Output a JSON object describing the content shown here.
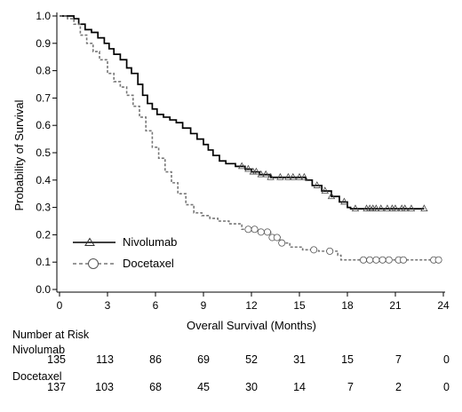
{
  "chart_data": {
    "type": "line",
    "title": "",
    "xlabel": "Overall Survival (Months)",
    "ylabel": "Probability of Survival",
    "xlim": [
      0,
      24
    ],
    "ylim": [
      0,
      1.0
    ],
    "x_ticks": [
      "0",
      "3",
      "6",
      "9",
      "12",
      "15",
      "18",
      "21",
      "24"
    ],
    "y_ticks": [
      "0.0",
      "0.1",
      "0.2",
      "0.3",
      "0.4",
      "0.5",
      "0.6",
      "0.7",
      "0.8",
      "0.9",
      "1.0"
    ],
    "grid": false,
    "legend_position": "lower-left",
    "series": [
      {
        "name": "Nivolumab",
        "color": "#000000",
        "style": "solid",
        "marker": "triangle",
        "steps": [
          [
            0,
            1.0
          ],
          [
            0.9,
            0.99
          ],
          [
            1.2,
            0.97
          ],
          [
            1.6,
            0.95
          ],
          [
            2.0,
            0.94
          ],
          [
            2.4,
            0.92
          ],
          [
            2.8,
            0.9
          ],
          [
            3.1,
            0.88
          ],
          [
            3.4,
            0.86
          ],
          [
            3.8,
            0.84
          ],
          [
            4.2,
            0.81
          ],
          [
            4.5,
            0.79
          ],
          [
            4.9,
            0.75
          ],
          [
            5.2,
            0.71
          ],
          [
            5.5,
            0.68
          ],
          [
            5.8,
            0.66
          ],
          [
            6.1,
            0.64
          ],
          [
            6.5,
            0.63
          ],
          [
            6.9,
            0.62
          ],
          [
            7.3,
            0.61
          ],
          [
            7.7,
            0.59
          ],
          [
            8.2,
            0.57
          ],
          [
            8.6,
            0.55
          ],
          [
            9.0,
            0.53
          ],
          [
            9.3,
            0.51
          ],
          [
            9.6,
            0.49
          ],
          [
            10.0,
            0.47
          ],
          [
            10.4,
            0.46
          ],
          [
            11.0,
            0.45
          ],
          [
            11.6,
            0.44
          ],
          [
            12.0,
            0.43
          ],
          [
            12.5,
            0.42
          ],
          [
            13.2,
            0.41
          ],
          [
            14.0,
            0.41
          ],
          [
            15.4,
            0.4
          ],
          [
            15.8,
            0.38
          ],
          [
            16.4,
            0.36
          ],
          [
            17.0,
            0.34
          ],
          [
            17.5,
            0.32
          ],
          [
            18.0,
            0.3
          ],
          [
            18.2,
            0.295
          ],
          [
            22.8,
            0.295
          ]
        ],
        "censor_x": [
          11.4,
          11.8,
          12.1,
          12.3,
          12.6,
          12.9,
          13.2,
          13.8,
          14.3,
          14.6,
          15.0,
          15.3,
          16.1,
          16.6,
          17.0,
          17.8,
          18.5,
          19.2,
          19.4,
          19.6,
          19.8,
          20.1,
          20.5,
          20.8,
          21.0,
          21.4,
          21.6,
          22.0,
          22.8
        ]
      },
      {
        "name": "Docetaxel",
        "color": "#777777",
        "style": "dashed",
        "marker": "circle",
        "steps": [
          [
            0,
            1.0
          ],
          [
            0.5,
            0.99
          ],
          [
            0.9,
            0.97
          ],
          [
            1.3,
            0.93
          ],
          [
            1.7,
            0.9
          ],
          [
            2.1,
            0.87
          ],
          [
            2.5,
            0.84
          ],
          [
            3.0,
            0.79
          ],
          [
            3.4,
            0.76
          ],
          [
            3.8,
            0.74
          ],
          [
            4.2,
            0.71
          ],
          [
            4.6,
            0.67
          ],
          [
            5.0,
            0.63
          ],
          [
            5.4,
            0.58
          ],
          [
            5.8,
            0.52
          ],
          [
            6.2,
            0.48
          ],
          [
            6.6,
            0.43
          ],
          [
            7.0,
            0.39
          ],
          [
            7.4,
            0.35
          ],
          [
            7.9,
            0.31
          ],
          [
            8.4,
            0.28
          ],
          [
            8.9,
            0.27
          ],
          [
            9.4,
            0.26
          ],
          [
            9.9,
            0.25
          ],
          [
            10.6,
            0.24
          ],
          [
            11.4,
            0.22
          ],
          [
            12.6,
            0.21
          ],
          [
            13.2,
            0.19
          ],
          [
            13.8,
            0.17
          ],
          [
            14.4,
            0.155
          ],
          [
            15.2,
            0.145
          ],
          [
            16.2,
            0.14
          ],
          [
            17.4,
            0.125
          ],
          [
            17.6,
            0.108
          ],
          [
            23.7,
            0.108
          ]
        ],
        "censor_x": [
          11.8,
          12.2,
          12.6,
          13.0,
          13.3,
          13.6,
          13.9,
          15.9,
          16.9,
          19.0,
          19.4,
          19.8,
          20.2,
          20.6,
          21.2,
          21.5,
          23.4,
          23.7
        ]
      }
    ]
  },
  "risk_table": {
    "title": "Number at Risk",
    "groups": [
      {
        "name": "Nivolumab",
        "values": [
          "135",
          "113",
          "86",
          "69",
          "52",
          "31",
          "15",
          "7",
          "0"
        ]
      },
      {
        "name": "Docetaxel",
        "values": [
          "137",
          "103",
          "68",
          "45",
          "30",
          "14",
          "7",
          "2",
          "0"
        ]
      }
    ]
  }
}
